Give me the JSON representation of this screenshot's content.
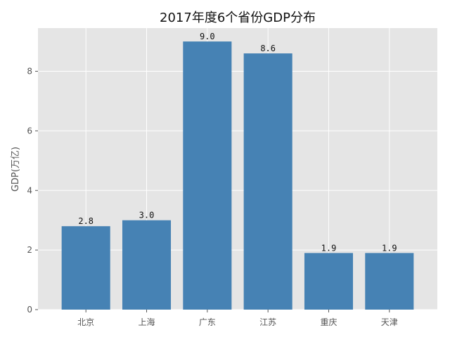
{
  "chart_data": {
    "type": "bar",
    "title": "2017年度6个省份GDP分布",
    "xlabel": "",
    "ylabel": "GDP(万亿)",
    "categories": [
      "北京",
      "上海",
      "广东",
      "江苏",
      "重庆",
      "天津"
    ],
    "values": [
      2.8,
      3.0,
      9.0,
      8.6,
      1.9,
      1.9
    ],
    "value_labels": [
      "2.8",
      "3.0",
      "9.0",
      "8.6",
      "1.9",
      "1.9"
    ],
    "ylim": [
      0,
      9.45
    ],
    "yticks": [
      0,
      2,
      4,
      6,
      8
    ],
    "grid": true,
    "colors": {
      "bar": "#4682b4",
      "plot_background": "#e5e5e5",
      "grid": "#ffffff"
    }
  }
}
